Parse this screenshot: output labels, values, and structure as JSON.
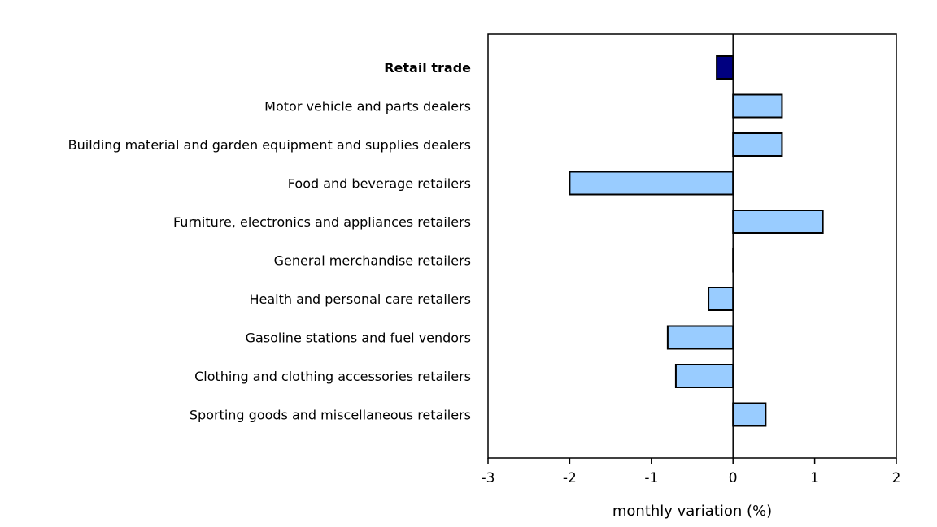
{
  "chart_data": {
    "type": "bar",
    "orientation": "horizontal",
    "categories": [
      "Retail trade",
      "Motor vehicle and parts dealers",
      "Building material and garden equipment and supplies dealers",
      "Food and beverage retailers",
      "Furniture, electronics and appliances retailers",
      "General merchandise retailers",
      "Health and personal care retailers",
      "Gasoline stations and fuel vendors",
      "Clothing and clothing accessories retailers",
      "Sporting goods and miscellaneous retailers"
    ],
    "values": [
      -0.2,
      0.6,
      0.6,
      -2.0,
      1.1,
      0.0,
      -0.3,
      -0.8,
      -0.7,
      0.4
    ],
    "bold_categories": [
      "Retail trade"
    ],
    "xlabel": "monthly variation (%)",
    "ylabel": "",
    "xlim": [
      -3,
      2
    ],
    "xticks": [
      "-3",
      "-2",
      "-1",
      "0",
      "1",
      "2"
    ],
    "grid": false,
    "colors": {
      "total": "#000080",
      "subsector": "#99CCFF",
      "outline": "#000000"
    }
  }
}
